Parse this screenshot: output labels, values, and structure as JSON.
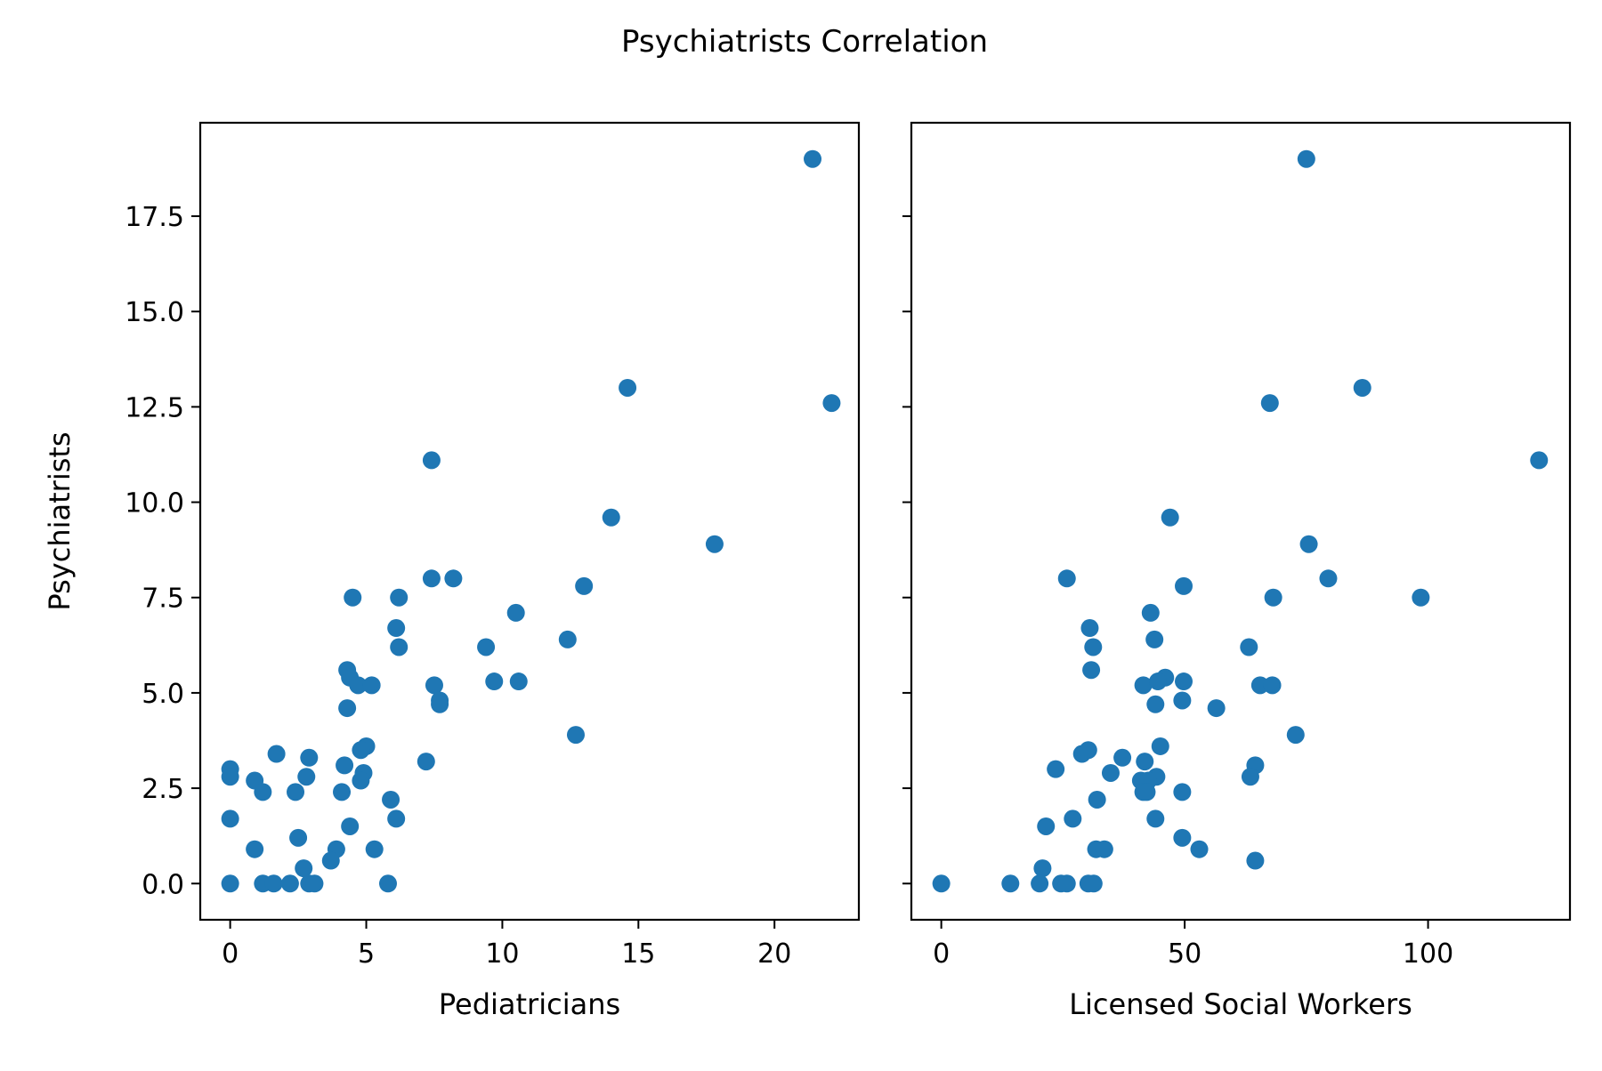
{
  "figure": {
    "title": "Psychiatrists Correlation"
  },
  "colors": {
    "marker": "#1f77b4",
    "axes": "#000000",
    "background": "#ffffff"
  },
  "chart_data": [
    {
      "type": "scatter",
      "xlabel": "Pediatricians",
      "ylabel": "Psychiatrists",
      "xlim": [
        -1.1,
        23.1
      ],
      "ylim": [
        -0.95,
        19.95
      ],
      "xticks": [
        0,
        5,
        10,
        15,
        20
      ],
      "xtick_labels": [
        "0",
        "5",
        "10",
        "15",
        "20"
      ],
      "yticks": [
        0,
        2.5,
        5,
        7.5,
        10,
        12.5,
        15,
        17.5
      ],
      "ytick_labels": [
        "0.0",
        "2.5",
        "5.0",
        "7.5",
        "10.0",
        "12.5",
        "15.0",
        "17.5"
      ],
      "grid": false,
      "points": [
        [
          21.4,
          19.0
        ],
        [
          14.6,
          13.0
        ],
        [
          22.1,
          12.6
        ],
        [
          7.4,
          11.1
        ],
        [
          14.0,
          9.6
        ],
        [
          17.8,
          8.9
        ],
        [
          7.4,
          8.0
        ],
        [
          8.2,
          8.0
        ],
        [
          13.0,
          7.8
        ],
        [
          4.5,
          7.5
        ],
        [
          6.2,
          7.5
        ],
        [
          10.5,
          7.1
        ],
        [
          6.1,
          6.7
        ],
        [
          12.4,
          6.4
        ],
        [
          6.2,
          6.2
        ],
        [
          9.4,
          6.2
        ],
        [
          4.3,
          5.6
        ],
        [
          4.4,
          5.4
        ],
        [
          4.7,
          5.2
        ],
        [
          5.2,
          5.2
        ],
        [
          7.5,
          5.2
        ],
        [
          9.7,
          5.3
        ],
        [
          10.6,
          5.3
        ],
        [
          7.7,
          4.8
        ],
        [
          7.7,
          4.7
        ],
        [
          4.3,
          4.6
        ],
        [
          12.7,
          3.9
        ],
        [
          5.0,
          3.6
        ],
        [
          4.8,
          3.5
        ],
        [
          1.7,
          3.4
        ],
        [
          2.9,
          3.3
        ],
        [
          7.2,
          3.2
        ],
        [
          4.2,
          3.1
        ],
        [
          0.0,
          3.0
        ],
        [
          4.9,
          2.9
        ],
        [
          0.0,
          2.8
        ],
        [
          2.8,
          2.8
        ],
        [
          0.9,
          2.7
        ],
        [
          4.8,
          2.7
        ],
        [
          1.2,
          2.4
        ],
        [
          2.4,
          2.4
        ],
        [
          4.1,
          2.4
        ],
        [
          5.9,
          2.2
        ],
        [
          0.0,
          1.7
        ],
        [
          6.1,
          1.7
        ],
        [
          4.4,
          1.5
        ],
        [
          2.5,
          1.2
        ],
        [
          0.9,
          0.9
        ],
        [
          3.9,
          0.9
        ],
        [
          5.3,
          0.9
        ],
        [
          3.7,
          0.6
        ],
        [
          2.7,
          0.4
        ],
        [
          0.0,
          0.0
        ],
        [
          1.2,
          0.0
        ],
        [
          1.6,
          0.0
        ],
        [
          2.2,
          0.0
        ],
        [
          2.9,
          0.0
        ],
        [
          3.1,
          0.0
        ],
        [
          5.8,
          0.0
        ]
      ]
    },
    {
      "type": "scatter",
      "xlabel": "Licensed Social Workers",
      "ylabel": "",
      "xlim": [
        -6.15,
        129.15
      ],
      "ylim": [
        -0.95,
        19.95
      ],
      "xticks": [
        0,
        50,
        100
      ],
      "xtick_labels": [
        "0",
        "50",
        "100"
      ],
      "yticks": [
        0,
        2.5,
        5,
        7.5,
        10,
        12.5,
        15,
        17.5
      ],
      "ytick_labels": [],
      "grid": false,
      "points": [
        [
          75.0,
          19.0
        ],
        [
          86.5,
          13.0
        ],
        [
          67.5,
          12.6
        ],
        [
          122.8,
          11.1
        ],
        [
          47.0,
          9.6
        ],
        [
          75.5,
          8.9
        ],
        [
          25.8,
          8.0
        ],
        [
          79.5,
          8.0
        ],
        [
          49.8,
          7.8
        ],
        [
          68.2,
          7.5
        ],
        [
          98.5,
          7.5
        ],
        [
          43.0,
          7.1
        ],
        [
          30.5,
          6.7
        ],
        [
          43.8,
          6.4
        ],
        [
          31.2,
          6.2
        ],
        [
          63.2,
          6.2
        ],
        [
          30.8,
          5.6
        ],
        [
          46.0,
          5.4
        ],
        [
          41.5,
          5.2
        ],
        [
          44.5,
          5.3
        ],
        [
          49.8,
          5.3
        ],
        [
          65.5,
          5.2
        ],
        [
          68.0,
          5.2
        ],
        [
          49.5,
          4.8
        ],
        [
          44.0,
          4.7
        ],
        [
          56.5,
          4.6
        ],
        [
          72.8,
          3.9
        ],
        [
          30.2,
          3.5
        ],
        [
          45.0,
          3.6
        ],
        [
          28.9,
          3.4
        ],
        [
          37.2,
          3.3
        ],
        [
          41.8,
          3.2
        ],
        [
          64.5,
          3.1
        ],
        [
          23.5,
          3.0
        ],
        [
          34.8,
          2.9
        ],
        [
          44.2,
          2.8
        ],
        [
          63.5,
          2.8
        ],
        [
          41.0,
          2.7
        ],
        [
          42.5,
          2.7
        ],
        [
          41.5,
          2.4
        ],
        [
          49.5,
          2.4
        ],
        [
          42.2,
          2.4
        ],
        [
          32.0,
          2.2
        ],
        [
          27.0,
          1.7
        ],
        [
          44.0,
          1.7
        ],
        [
          21.5,
          1.5
        ],
        [
          49.5,
          1.2
        ],
        [
          31.8,
          0.9
        ],
        [
          33.5,
          0.9
        ],
        [
          53.0,
          0.9
        ],
        [
          64.5,
          0.6
        ],
        [
          20.8,
          0.4
        ],
        [
          0.0,
          0.0
        ],
        [
          14.2,
          0.0
        ],
        [
          20.2,
          0.0
        ],
        [
          24.6,
          0.0
        ],
        [
          25.8,
          0.0
        ],
        [
          30.2,
          0.0
        ],
        [
          31.3,
          0.0
        ]
      ]
    }
  ]
}
